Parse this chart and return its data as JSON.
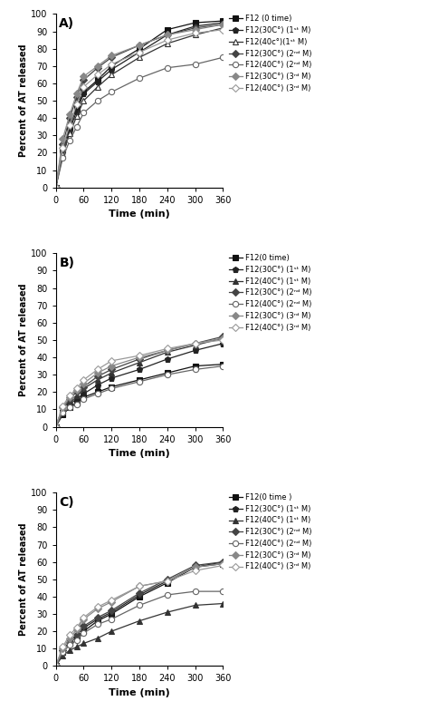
{
  "time": [
    0,
    15,
    30,
    45,
    60,
    90,
    120,
    180,
    240,
    300,
    360
  ],
  "A": {
    "panel_label": "A)",
    "series": [
      {
        "marker": "s",
        "fillstyle": "full",
        "color": "#111111",
        "values": [
          0,
          22,
          35,
          46,
          55,
          62,
          70,
          80,
          91,
          95,
          96
        ]
      },
      {
        "marker": "p",
        "fillstyle": "full",
        "color": "#222222",
        "values": [
          0,
          20,
          33,
          44,
          54,
          61,
          68,
          78,
          88,
          93,
          95
        ]
      },
      {
        "marker": "^",
        "fillstyle": "none",
        "color": "#333333",
        "values": [
          0,
          19,
          31,
          41,
          50,
          58,
          65,
          75,
          83,
          88,
          92
        ]
      },
      {
        "marker": "D",
        "fillstyle": "full",
        "color": "#444444",
        "values": [
          0,
          25,
          40,
          52,
          62,
          69,
          75,
          82,
          88,
          92,
          94
        ]
      },
      {
        "marker": "o",
        "fillstyle": "none",
        "color": "#666666",
        "values": [
          0,
          17,
          27,
          35,
          43,
          50,
          55,
          63,
          69,
          71,
          75
        ]
      },
      {
        "marker": "D",
        "fillstyle": "full",
        "color": "#888888",
        "values": [
          0,
          28,
          42,
          54,
          64,
          70,
          76,
          82,
          88,
          91,
          94
        ]
      },
      {
        "marker": "D",
        "fillstyle": "none",
        "color": "#999999",
        "values": [
          0,
          23,
          36,
          48,
          58,
          65,
          71,
          78,
          85,
          89,
          91
        ]
      }
    ],
    "legend_labels": [
      "F12 (0 time)",
      "F12(30C°) (1ˢᵗ M)",
      "F12(40c°)(1ˢᵗ M)",
      "F12(30C°) (2ⁿᵈ M)",
      "F12(40C°) (2ⁿᵈ M)",
      "F12(30C°) (3ʳᵈ M)",
      "F12(40C°) (3ʳᵈ M)"
    ]
  },
  "B": {
    "panel_label": "B)",
    "series": [
      {
        "marker": "s",
        "fillstyle": "full",
        "color": "#111111",
        "values": [
          0,
          7,
          11,
          14,
          17,
          20,
          23,
          27,
          31,
          35,
          36
        ]
      },
      {
        "marker": "p",
        "fillstyle": "full",
        "color": "#222222",
        "values": [
          0,
          9,
          13,
          16,
          19,
          24,
          28,
          33,
          39,
          44,
          48
        ]
      },
      {
        "marker": "^",
        "fillstyle": "full",
        "color": "#333333",
        "values": [
          0,
          10,
          15,
          18,
          22,
          27,
          31,
          37,
          43,
          47,
          51
        ]
      },
      {
        "marker": "D",
        "fillstyle": "full",
        "color": "#444444",
        "values": [
          0,
          11,
          16,
          20,
          23,
          29,
          33,
          39,
          44,
          48,
          52
        ]
      },
      {
        "marker": "o",
        "fillstyle": "none",
        "color": "#666666",
        "values": [
          0,
          8,
          11,
          13,
          16,
          19,
          22,
          26,
          30,
          33,
          35
        ]
      },
      {
        "marker": "D",
        "fillstyle": "full",
        "color": "#888888",
        "values": [
          0,
          11,
          17,
          21,
          25,
          31,
          35,
          40,
          44,
          48,
          51
        ]
      },
      {
        "marker": "D",
        "fillstyle": "none",
        "color": "#999999",
        "values": [
          0,
          12,
          18,
          22,
          27,
          33,
          38,
          41,
          45,
          48,
          50
        ]
      }
    ],
    "legend_labels": [
      "F12(0 time)",
      "F12(30C°) (1ˢᵗ M)",
      "F12(40C°) (1ˢᵗ M)",
      "F12(30C°) (2ⁿᵈ M)",
      "F12(40C°) (2ⁿᵈ M)",
      "F12(30C°) (3ʳᵈ M)",
      "F12(40C°) (3ʳᵈ M)"
    ]
  },
  "C": {
    "panel_label": "C)",
    "series": [
      {
        "marker": "s",
        "fillstyle": "full",
        "color": "#111111",
        "values": [
          0,
          8,
          13,
          17,
          20,
          26,
          30,
          40,
          48,
          57,
          59
        ]
      },
      {
        "marker": "p",
        "fillstyle": "full",
        "color": "#222222",
        "values": [
          0,
          9,
          14,
          18,
          22,
          27,
          31,
          41,
          49,
          57,
          60
        ]
      },
      {
        "marker": "^",
        "fillstyle": "full",
        "color": "#333333",
        "values": [
          0,
          6,
          9,
          11,
          13,
          16,
          20,
          26,
          31,
          35,
          36
        ]
      },
      {
        "marker": "D",
        "fillstyle": "full",
        "color": "#444444",
        "values": [
          0,
          9,
          14,
          18,
          23,
          28,
          32,
          42,
          50,
          58,
          60
        ]
      },
      {
        "marker": "o",
        "fillstyle": "none",
        "color": "#666666",
        "values": [
          0,
          8,
          12,
          15,
          19,
          24,
          27,
          35,
          41,
          43,
          43
        ]
      },
      {
        "marker": "D",
        "fillstyle": "full",
        "color": "#888888",
        "values": [
          0,
          10,
          16,
          21,
          27,
          33,
          37,
          46,
          49,
          57,
          59
        ]
      },
      {
        "marker": "D",
        "fillstyle": "none",
        "color": "#999999",
        "values": [
          0,
          11,
          18,
          22,
          28,
          34,
          38,
          46,
          49,
          55,
          58
        ]
      }
    ],
    "legend_labels": [
      "F12(0 time )",
      "F12(30C°) (1ˢᵗ M)",
      "F12(40C°) (1ˢᵗ M)",
      "F12(30C°) (2ⁿᵈ M)",
      "F12(40C°) (2ⁿᵈ M)",
      "F12(30C°) (3ʳᵈ M)",
      "F12(40C°) (3ʳᵈ M)"
    ]
  },
  "xlabel": "Time (min)",
  "ylabel": "Percent of AT released",
  "xticks": [
    0,
    60,
    120,
    180,
    240,
    300,
    360
  ],
  "yticks": [
    0,
    10,
    20,
    30,
    40,
    50,
    60,
    70,
    80,
    90,
    100
  ],
  "ylim": [
    0,
    100
  ],
  "xlim": [
    0,
    360
  ]
}
